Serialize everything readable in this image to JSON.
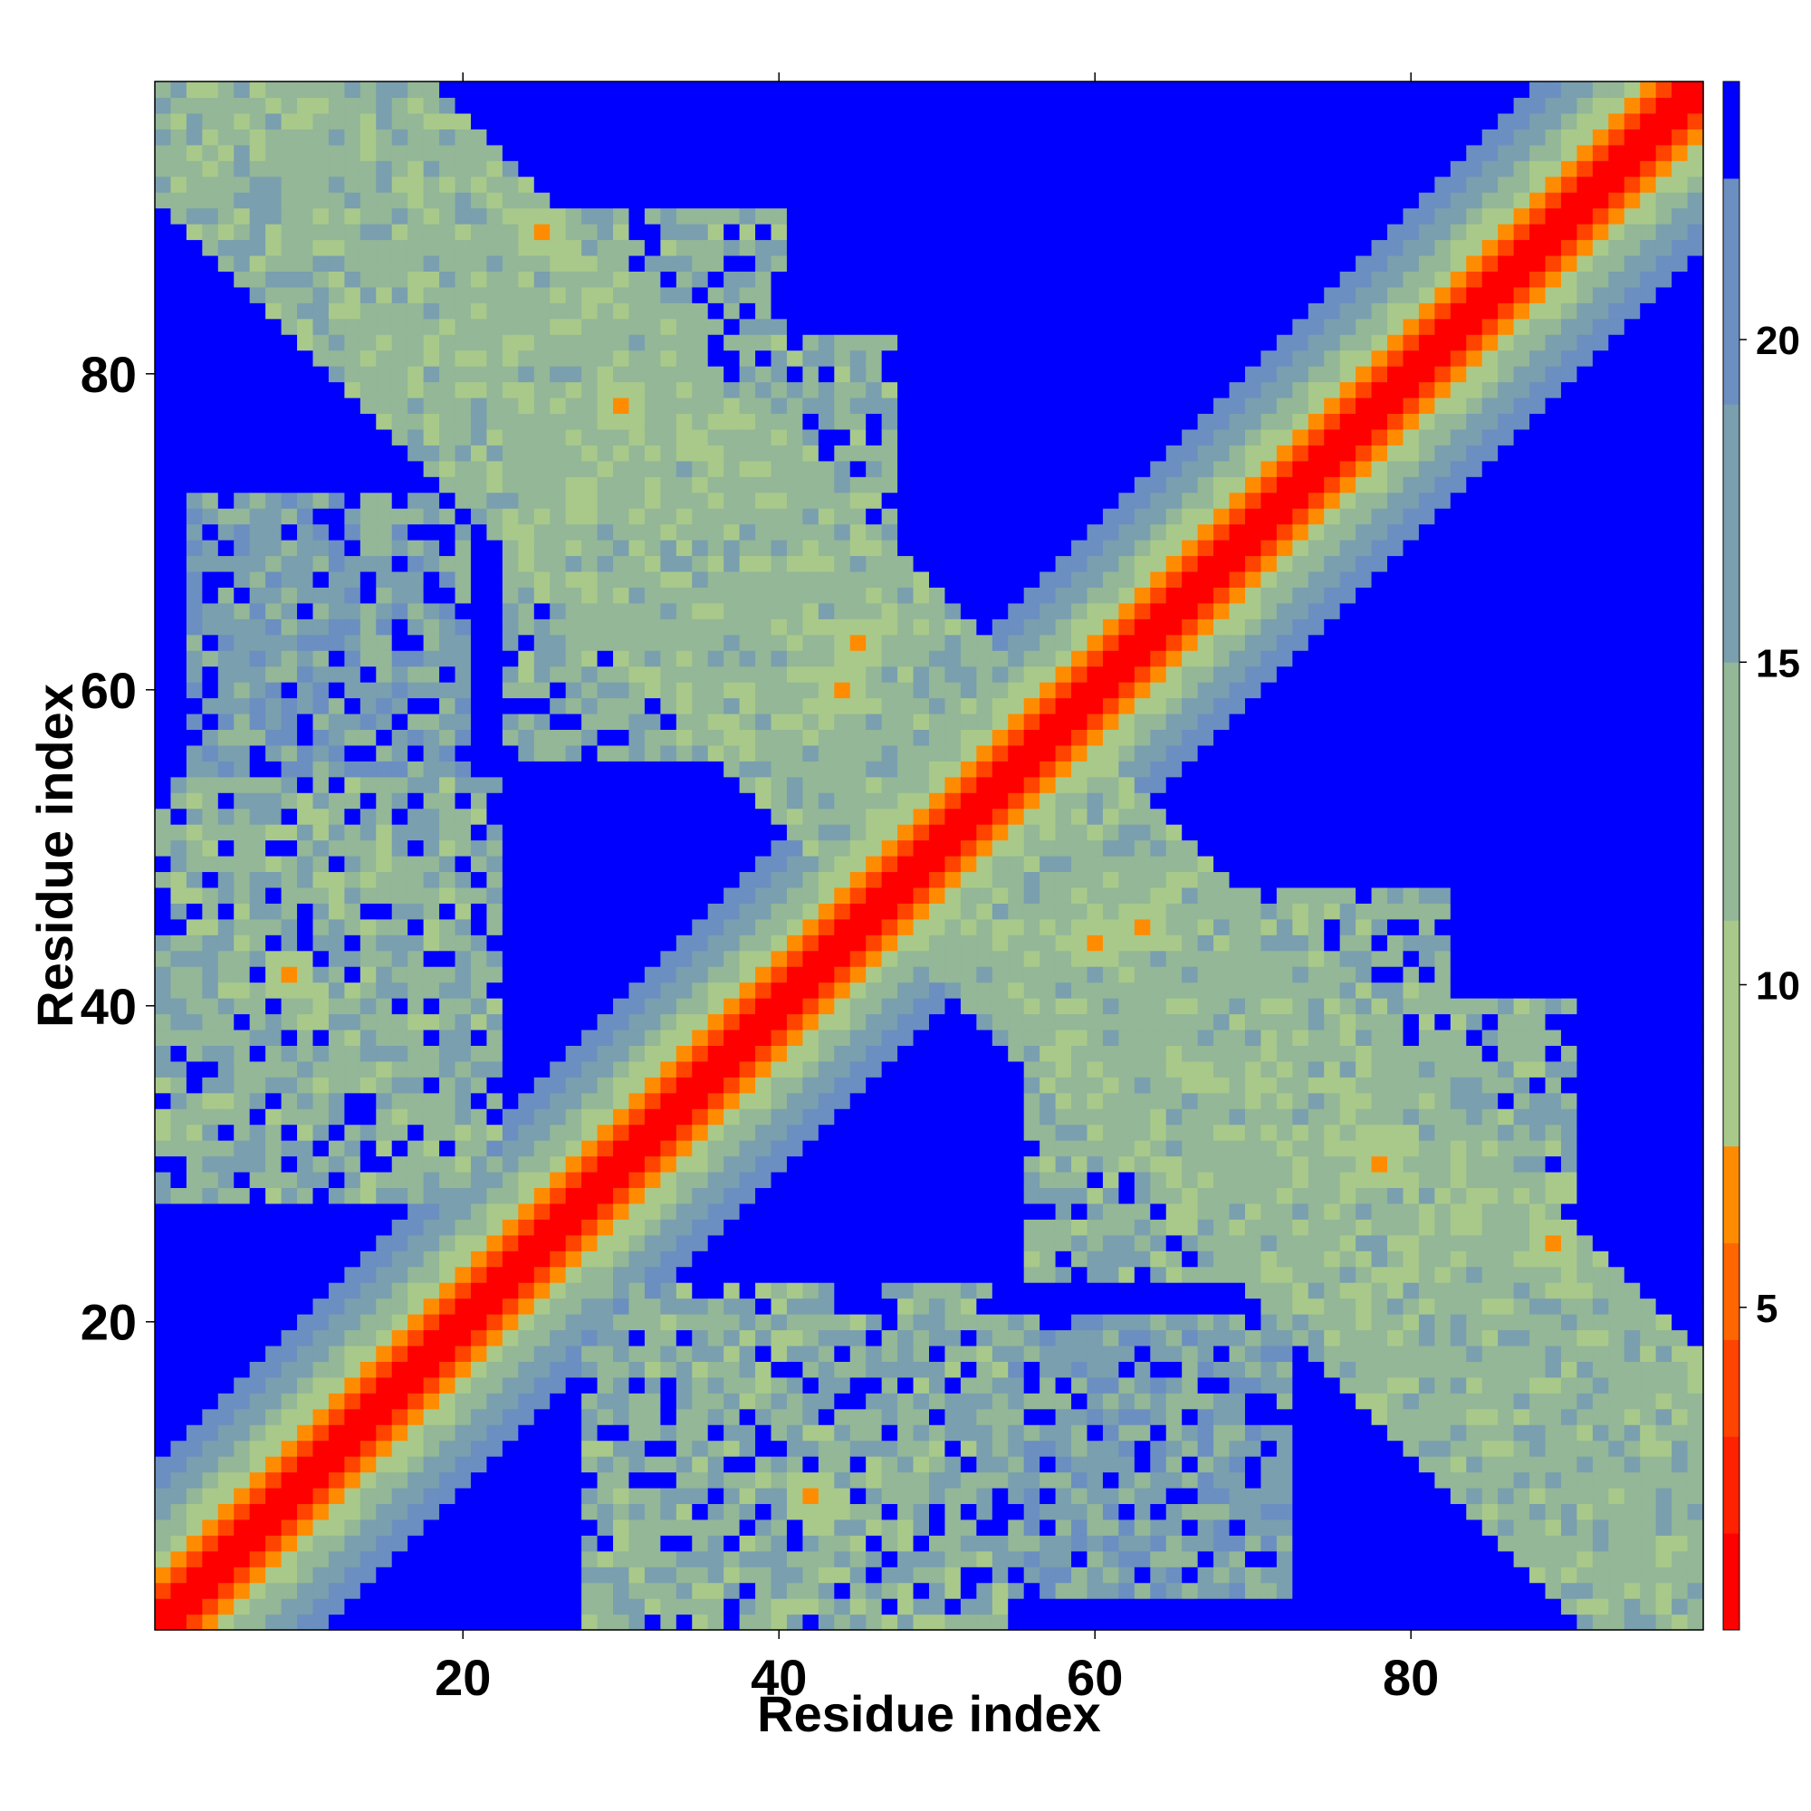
{
  "chart_data": {
    "type": "heatmap",
    "title": "",
    "xlabel": "Residue index",
    "ylabel": "Residue index",
    "n_residues": 98,
    "xlim": [
      1,
      98
    ],
    "ylim": [
      1,
      98
    ],
    "x_ticks": [
      20,
      40,
      60,
      80
    ],
    "y_ticks": [
      20,
      40,
      60,
      80
    ],
    "colorbar": {
      "range": [
        0,
        24
      ],
      "ticks": [
        5,
        10,
        15,
        20
      ],
      "levels": [
        {
          "from": 0,
          "to": 1.5,
          "color": "#ff0000"
        },
        {
          "from": 1.5,
          "to": 3,
          "color": "#ff2200"
        },
        {
          "from": 3,
          "to": 4.5,
          "color": "#ff4400"
        },
        {
          "from": 4.5,
          "to": 6,
          "color": "#ff6600"
        },
        {
          "from": 6,
          "to": 7.5,
          "color": "#ff8c00"
        },
        {
          "from": 7.5,
          "to": 11,
          "color": "#a9c98a"
        },
        {
          "from": 11,
          "to": 15,
          "color": "#93b797"
        },
        {
          "from": 15,
          "to": 19,
          "color": "#7a9fae"
        },
        {
          "from": 19,
          "to": 22.5,
          "color": "#6b8fc0"
        },
        {
          "from": 22.5,
          "to": 24,
          "color": "#0000ff"
        }
      ]
    },
    "structure": {
      "background_value": 24,
      "diagonal": [
        {
          "offset": 0,
          "value": 0.5
        },
        {
          "offset": 1,
          "value": 0.8
        },
        {
          "offset": 2,
          "value": 4
        },
        {
          "offset": 3,
          "value": 7
        },
        {
          "offset": 4,
          "value": 9
        },
        {
          "offset": 5,
          "value": 11
        },
        {
          "offset": 6,
          "value": 13
        },
        {
          "offset": 7,
          "value": 16
        },
        {
          "offset": 8,
          "value": 18
        },
        {
          "offset": 9,
          "value": 20
        },
        {
          "offset": 10,
          "value": 21.5
        }
      ],
      "anti_diagonal_band": {
        "sum_center": 104,
        "half_width": 12,
        "value": 13
      },
      "contact_lobes": [
        {
          "i": [
            1,
            22
          ],
          "j": [
            28,
            54
          ],
          "value": 14
        },
        {
          "i": [
            24,
            40
          ],
          "j": [
            63,
            90
          ],
          "value": 14
        },
        {
          "i": [
            56,
            82
          ],
          "j": [
            23,
            47
          ],
          "value": 14
        },
        {
          "i": [
            28,
            54
          ],
          "j": [
            1,
            22
          ],
          "value": 14
        },
        {
          "i": [
            63,
            90
          ],
          "j": [
            24,
            40
          ],
          "value": 14
        },
        {
          "i": [
            23,
            47
          ],
          "j": [
            56,
            82
          ],
          "value": 14
        },
        {
          "i": [
            3,
            20
          ],
          "j": [
            55,
            72
          ],
          "value": 17
        },
        {
          "i": [
            55,
            72
          ],
          "j": [
            3,
            20
          ],
          "value": 17
        }
      ],
      "close_contacts": [
        {
          "i": 25,
          "j": 89,
          "value": 6
        },
        {
          "i": 89,
          "j": 25,
          "value": 6
        },
        {
          "i": 9,
          "j": 42,
          "value": 6
        },
        {
          "i": 42,
          "j": 9,
          "value": 6
        },
        {
          "i": 30,
          "j": 78,
          "value": 6
        },
        {
          "i": 78,
          "j": 30,
          "value": 6
        },
        {
          "i": 45,
          "j": 63,
          "value": 6
        },
        {
          "i": 63,
          "j": 45,
          "value": 6
        },
        {
          "i": 60,
          "j": 44,
          "value": 6
        },
        {
          "i": 44,
          "j": 60,
          "value": 6
        }
      ]
    }
  }
}
